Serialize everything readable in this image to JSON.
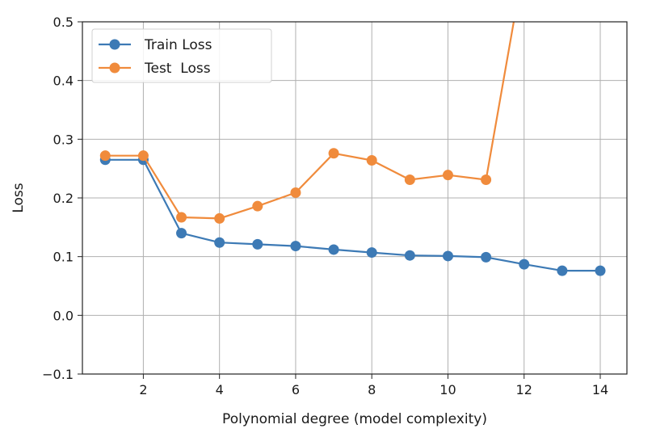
{
  "chart_data": {
    "type": "line",
    "title": "",
    "xlabel": "Polynomial degree (model complexity)",
    "ylabel": "Loss",
    "xlim": [
      0.4,
      14.7
    ],
    "ylim": [
      -0.1,
      0.5
    ],
    "x_ticks": [
      2,
      4,
      6,
      8,
      10,
      12,
      14
    ],
    "y_ticks": [
      -0.1,
      0.0,
      0.1,
      0.2,
      0.3,
      0.4,
      0.5
    ],
    "x_tick_labels": [
      "2",
      "4",
      "6",
      "8",
      "10",
      "12",
      "14"
    ],
    "y_tick_labels": [
      "−0.1",
      "0.0",
      "0.1",
      "0.2",
      "0.3",
      "0.4",
      "0.5"
    ],
    "grid": true,
    "legend_position": "top-left",
    "x": [
      1,
      2,
      3,
      4,
      5,
      6,
      7,
      8,
      9,
      10,
      11,
      12,
      13,
      14
    ],
    "series": [
      {
        "name": "Train Loss",
        "color": "#3d7ab5",
        "values": [
          0.265,
          0.265,
          0.14,
          0.124,
          0.121,
          0.118,
          0.112,
          0.107,
          0.102,
          0.101,
          0.099,
          0.087,
          0.076,
          0.076
        ]
      },
      {
        "name": "Test  Loss",
        "color": "#f08b3c",
        "values": [
          0.272,
          0.272,
          0.167,
          0.165,
          0.186,
          0.209,
          0.276,
          0.264,
          0.231,
          0.239,
          0.231,
          0.6,
          null,
          null
        ]
      }
    ]
  }
}
